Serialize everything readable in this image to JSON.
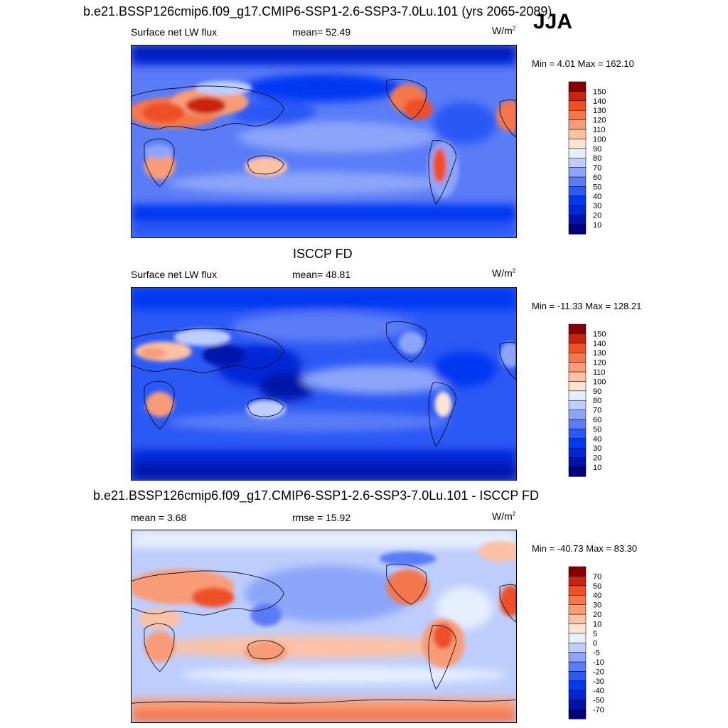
{
  "header": {
    "title_top": "b.e21.BSSP126cmip6.f09_g17.CMIP6-SSP1-2.6-SSP3-7.0Lu.101 (yrs 2065-2089)",
    "season": "JJA"
  },
  "panels": [
    {
      "title": "",
      "left_label": "Surface net LW flux",
      "mid_label": "mean=  52.49",
      "units_base": "W/m",
      "units_sup": "2",
      "minmax": "Min =   4.01 Max = 162.10",
      "levels": [
        "10",
        "20",
        "30",
        "40",
        "50",
        "60",
        "70",
        "80",
        "90",
        "100",
        "110",
        "120",
        "130",
        "140",
        "150"
      ],
      "colors": [
        "#00007f",
        "#0012aa",
        "#0026d5",
        "#0039f2",
        "#2b59f5",
        "#5a7cf7",
        "#8ca5f9",
        "#bdcdfc",
        "#e6effe",
        "#fde3d2",
        "#fbc1a5",
        "#f89c77",
        "#f4774b",
        "#ef4f25",
        "#c9240f",
        "#850000"
      ]
    },
    {
      "title": "ISCCP FD",
      "left_label": "Surface net LW flux",
      "mid_label": "mean=  48.81",
      "units_base": "W/m",
      "units_sup": "2",
      "minmax": "Min = -11.33 Max = 128.21",
      "levels": [
        "10",
        "20",
        "30",
        "40",
        "50",
        "60",
        "70",
        "80",
        "90",
        "100",
        "110",
        "120",
        "130",
        "140",
        "150"
      ],
      "colors": [
        "#00007f",
        "#0012aa",
        "#0026d5",
        "#0039f2",
        "#2b59f5",
        "#5a7cf7",
        "#8ca5f9",
        "#bdcdfc",
        "#e6effe",
        "#fde3d2",
        "#fbc1a5",
        "#f89c77",
        "#f4774b",
        "#ef4f25",
        "#c9240f",
        "#850000"
      ]
    },
    {
      "title": "b.e21.BSSP126cmip6.f09_g17.CMIP6-SSP1-2.6-SSP3-7.0Lu.101 - ISCCP FD",
      "left_label": "mean =   3.68",
      "mid_label": "rmse =  15.92",
      "units_base": "W/m",
      "units_sup": "2",
      "minmax": "Min = -40.73 Max =  83.30",
      "levels": [
        "-70",
        "-50",
        "-40",
        "-30",
        "-20",
        "-10",
        "-5",
        "0",
        "5",
        "10",
        "20",
        "30",
        "40",
        "50",
        "70"
      ],
      "colors": [
        "#00007f",
        "#0012aa",
        "#0026d5",
        "#0039f2",
        "#2b59f5",
        "#5a7cf7",
        "#8ca5f9",
        "#bdcdfc",
        "#e6effe",
        "#fde3d2",
        "#fbc1a5",
        "#f89c77",
        "#f4774b",
        "#ef4f25",
        "#c9240f",
        "#850000"
      ]
    }
  ],
  "chart_data": {
    "type": "heatmap",
    "variable": "Surface net LW flux",
    "units": "W/m2",
    "season": "JJA",
    "maps": [
      {
        "name": "b.e21.BSSP126cmip6.f09_g17.CMIP6-SSP1-2.6-SSP3-7.0Lu.101 (yrs 2065-2089)",
        "mean": 52.49,
        "min": 4.01,
        "max": 162.1,
        "contour_levels": [
          10,
          20,
          30,
          40,
          50,
          60,
          70,
          80,
          90,
          100,
          110,
          120,
          130,
          140,
          150
        ]
      },
      {
        "name": "ISCCP FD",
        "mean": 48.81,
        "min": -11.33,
        "max": 128.21,
        "contour_levels": [
          10,
          20,
          30,
          40,
          50,
          60,
          70,
          80,
          90,
          100,
          110,
          120,
          130,
          140,
          150
        ]
      },
      {
        "name": "b.e21.BSSP126cmip6.f09_g17.CMIP6-SSP1-2.6-SSP3-7.0Lu.101 - ISCCP FD",
        "mean": 3.68,
        "rmse": 15.92,
        "min": -40.73,
        "max": 83.3,
        "contour_levels": [
          -70,
          -50,
          -40,
          -30,
          -20,
          -10,
          -5,
          0,
          5,
          10,
          20,
          30,
          40,
          50,
          70
        ]
      }
    ]
  }
}
